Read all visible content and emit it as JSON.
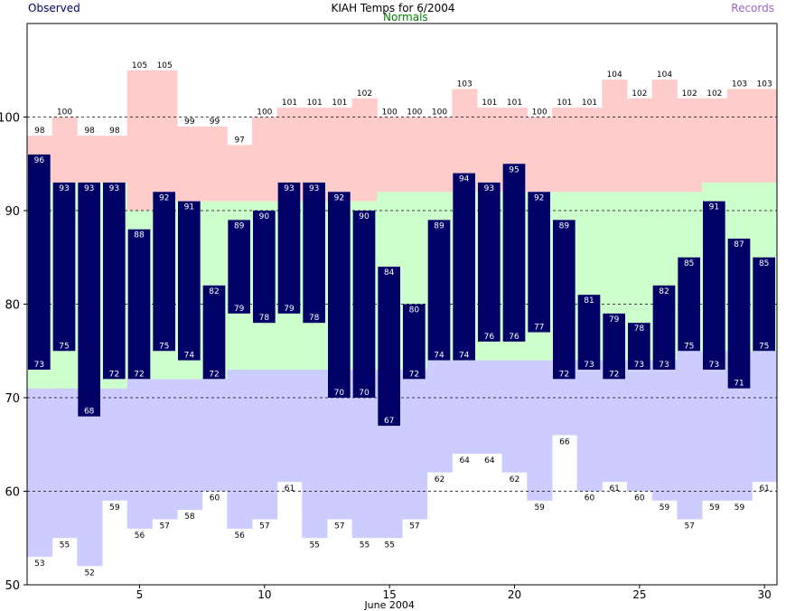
{
  "legend": {
    "observed": "Observed",
    "normals": "Normals",
    "records": "Records",
    "observed_color": "#000066",
    "normals_color": "#008000",
    "records_color": "#9966cc"
  },
  "chart_data": {
    "type": "bar",
    "title": "KIAH Temps for 6/2004",
    "xlabel": "June 2004",
    "ylabel": "",
    "ylim": [
      50,
      110
    ],
    "xlim": [
      0.5,
      30.5
    ],
    "yticks": [
      50,
      60,
      70,
      80,
      90,
      100
    ],
    "xticks": [
      5,
      10,
      15,
      20,
      25,
      30
    ],
    "grid": "dashed at 60, 70, 80, 90, 100",
    "days": [
      1,
      2,
      3,
      4,
      5,
      6,
      7,
      8,
      9,
      10,
      11,
      12,
      13,
      14,
      15,
      16,
      17,
      18,
      19,
      20,
      21,
      22,
      23,
      24,
      25,
      26,
      27,
      28,
      29,
      30
    ],
    "observed_high": [
      96,
      93,
      93,
      93,
      88,
      92,
      91,
      82,
      89,
      90,
      93,
      93,
      92,
      90,
      84,
      80,
      89,
      94,
      93,
      95,
      92,
      89,
      81,
      79,
      78,
      82,
      85,
      91,
      87,
      85
    ],
    "observed_low": [
      73,
      75,
      68,
      72,
      72,
      75,
      74,
      72,
      79,
      78,
      79,
      78,
      70,
      70,
      67,
      72,
      74,
      74,
      76,
      76,
      77,
      72,
      73,
      72,
      73,
      73,
      75,
      73,
      71,
      75
    ],
    "record_high": [
      98,
      100,
      98,
      98,
      105,
      105,
      99,
      99,
      97,
      100,
      101,
      101,
      101,
      102,
      100,
      100,
      100,
      103,
      101,
      101,
      100,
      101,
      101,
      104,
      102,
      104,
      102,
      102,
      103,
      103
    ],
    "record_low": [
      53,
      55,
      52,
      59,
      56,
      57,
      58,
      60,
      56,
      57,
      61,
      55,
      57,
      55,
      55,
      57,
      62,
      64,
      64,
      62,
      59,
      66,
      60,
      61,
      60,
      59,
      57,
      59,
      59,
      61
    ],
    "normal_high": [
      93,
      93,
      93,
      93,
      90,
      91,
      91,
      91,
      91,
      91,
      91,
      91,
      91,
      91,
      92,
      92,
      92,
      92,
      92,
      92,
      92,
      92,
      92,
      92,
      92,
      92,
      92,
      93,
      93,
      93
    ],
    "normal_low": [
      71,
      71,
      71,
      71,
      72,
      72,
      72,
      72,
      73,
      73,
      73,
      73,
      73,
      73,
      73,
      73,
      74,
      74,
      74,
      74,
      74,
      74,
      74,
      74,
      74,
      74,
      75,
      75,
      75,
      75
    ],
    "colors": {
      "observed": "#000066",
      "observed_text": "#ffffff",
      "normal": "#ccffcc",
      "record_high": "#ffcccc",
      "record_low": "#ccccff"
    }
  }
}
